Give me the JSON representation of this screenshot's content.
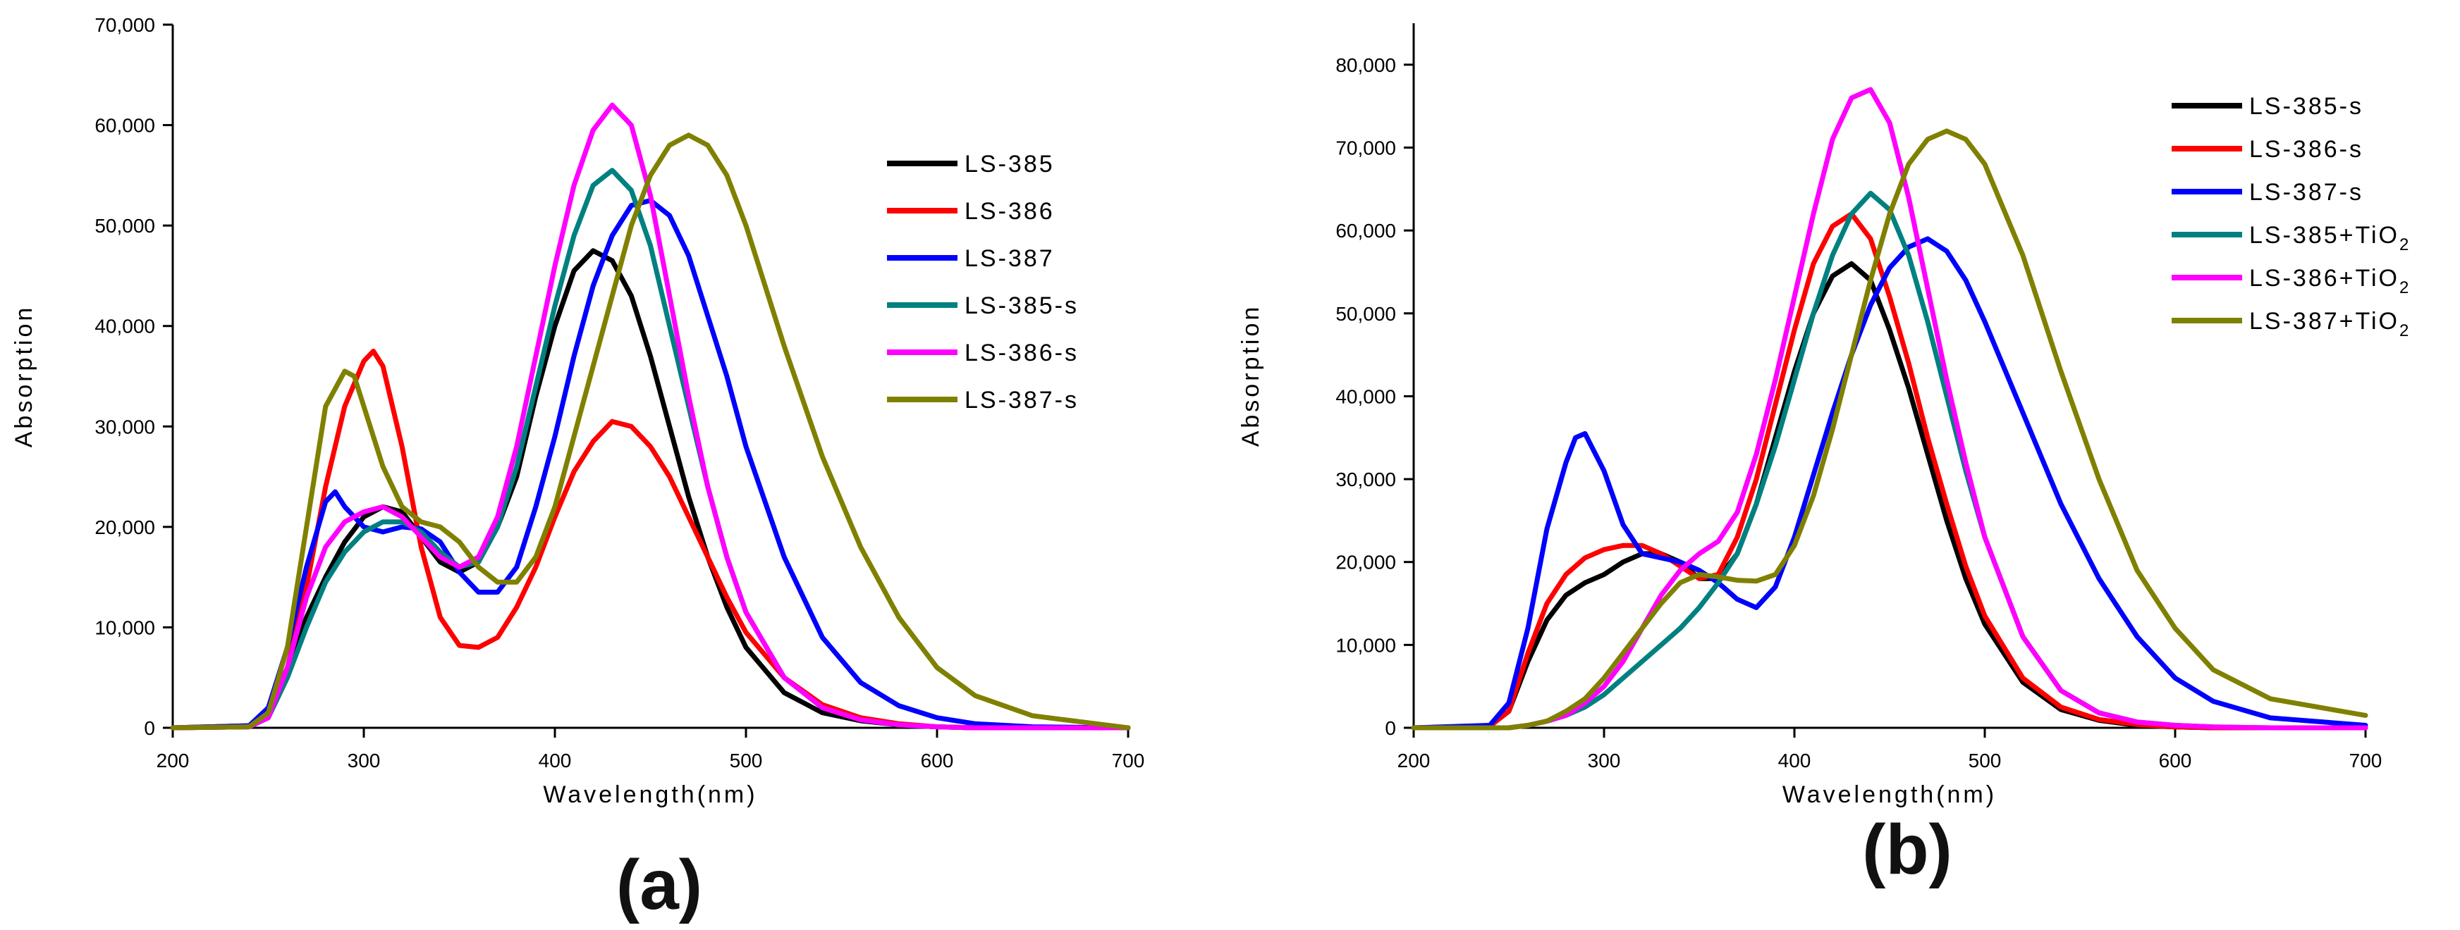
{
  "chart_data": [
    {
      "type": "line",
      "panel_label": "(a)",
      "xlabel": "Wavelength(nm)",
      "ylabel": "Absorption",
      "xlim": [
        200,
        700
      ],
      "ylim": [
        0,
        70000
      ],
      "xticks": [
        200,
        300,
        400,
        500,
        600,
        700
      ],
      "xtick_labels": [
        "200",
        "300",
        "400",
        "500",
        "600",
        "700"
      ],
      "yticks": [
        0,
        10000,
        20000,
        30000,
        40000,
        50000,
        60000,
        70000
      ],
      "ytick_labels": [
        "0",
        "10,000",
        "20,000",
        "30,000",
        "40,000",
        "50,000",
        "60,000",
        "70,000"
      ],
      "legend_position": "top-right",
      "series": [
        {
          "name": "LS-385",
          "color": "#000000",
          "x": [
            200,
            240,
            250,
            260,
            270,
            280,
            290,
            300,
            310,
            320,
            330,
            340,
            350,
            360,
            370,
            380,
            390,
            400,
            410,
            420,
            430,
            440,
            450,
            460,
            470,
            480,
            490,
            500,
            520,
            540,
            560,
            580,
            600,
            620,
            650,
            700
          ],
          "y": [
            0,
            200,
            1500,
            6000,
            11000,
            15000,
            18500,
            21000,
            22000,
            21500,
            19000,
            16500,
            15500,
            16500,
            20000,
            25000,
            33000,
            40000,
            45500,
            47500,
            46500,
            43000,
            37000,
            30000,
            23000,
            17000,
            12000,
            8000,
            3500,
            1500,
            700,
            300,
            100,
            0,
            0,
            0
          ]
        },
        {
          "name": "LS-386",
          "color": "#ff0000",
          "x": [
            200,
            240,
            250,
            260,
            270,
            280,
            290,
            300,
            305,
            310,
            320,
            330,
            340,
            350,
            360,
            370,
            380,
            390,
            400,
            410,
            420,
            430,
            440,
            450,
            460,
            470,
            480,
            490,
            500,
            520,
            540,
            560,
            580,
            600,
            620,
            650,
            700
          ],
          "y": [
            0,
            100,
            1000,
            6000,
            14000,
            24000,
            32000,
            36500,
            37500,
            36000,
            28000,
            18000,
            11000,
            8200,
            8000,
            9000,
            12000,
            16000,
            21000,
            25500,
            28500,
            30500,
            30000,
            28000,
            25000,
            21000,
            17000,
            13000,
            9500,
            5000,
            2300,
            1000,
            400,
            100,
            0,
            0,
            0
          ]
        },
        {
          "name": "LS-387",
          "color": "#0000ff",
          "x": [
            200,
            240,
            250,
            260,
            270,
            280,
            285,
            290,
            300,
            310,
            320,
            330,
            340,
            350,
            360,
            370,
            380,
            390,
            400,
            410,
            420,
            430,
            440,
            450,
            460,
            470,
            480,
            490,
            500,
            520,
            540,
            560,
            580,
            600,
            620,
            650,
            700
          ],
          "y": [
            0,
            200,
            2000,
            8000,
            16000,
            22500,
            23500,
            22000,
            20000,
            19500,
            20000,
            19800,
            18500,
            15500,
            13500,
            13500,
            16000,
            22000,
            29000,
            37000,
            44000,
            49000,
            52000,
            52500,
            51000,
            47000,
            41000,
            35000,
            28000,
            17000,
            9000,
            4500,
            2200,
            1000,
            400,
            100,
            0
          ]
        },
        {
          "name": "LS-385-s",
          "color": "#008080",
          "x": [
            200,
            240,
            250,
            260,
            270,
            280,
            290,
            300,
            310,
            320,
            330,
            340,
            350,
            360,
            370,
            380,
            390,
            400,
            410,
            420,
            430,
            440,
            450,
            460,
            470,
            480,
            490,
            500,
            520,
            540,
            560,
            580,
            600,
            620,
            650,
            700
          ],
          "y": [
            0,
            100,
            1000,
            5000,
            10000,
            14500,
            17500,
            19500,
            20500,
            20500,
            19500,
            17500,
            16000,
            16500,
            20000,
            26000,
            34000,
            42000,
            49000,
            54000,
            55500,
            53500,
            48000,
            40000,
            32000,
            24000,
            17000,
            11500,
            5000,
            2000,
            800,
            300,
            100,
            0,
            0,
            0
          ]
        },
        {
          "name": "LS-386-s",
          "color": "#ff00ff",
          "x": [
            200,
            240,
            250,
            260,
            270,
            280,
            290,
            300,
            310,
            320,
            330,
            340,
            350,
            360,
            370,
            380,
            390,
            400,
            410,
            420,
            430,
            440,
            450,
            460,
            470,
            480,
            490,
            500,
            520,
            540,
            560,
            580,
            600,
            620,
            650,
            700
          ],
          "y": [
            0,
            100,
            1000,
            6000,
            13000,
            18000,
            20500,
            21500,
            22000,
            21000,
            19000,
            17000,
            16000,
            17000,
            21000,
            28000,
            37000,
            46000,
            54000,
            59500,
            62000,
            60000,
            53000,
            43000,
            33000,
            24000,
            17000,
            11500,
            5000,
            2000,
            800,
            300,
            100,
            0,
            0,
            0
          ]
        },
        {
          "name": "LS-387-s",
          "color": "#808000",
          "x": [
            200,
            240,
            250,
            260,
            270,
            280,
            290,
            295,
            300,
            310,
            320,
            330,
            340,
            350,
            360,
            370,
            380,
            390,
            400,
            410,
            420,
            430,
            440,
            450,
            460,
            470,
            480,
            490,
            500,
            520,
            540,
            560,
            580,
            600,
            620,
            650,
            700
          ],
          "y": [
            0,
            100,
            1500,
            8000,
            20000,
            32000,
            35500,
            35000,
            32000,
            26000,
            22000,
            20500,
            20000,
            18500,
            16000,
            14500,
            14500,
            17000,
            22000,
            29000,
            36000,
            43000,
            50000,
            55000,
            58000,
            59000,
            58000,
            55000,
            50000,
            38000,
            27000,
            18000,
            11000,
            6000,
            3200,
            1200,
            0
          ]
        }
      ]
    },
    {
      "type": "line",
      "panel_label": "(b)",
      "xlabel": "Wavelength(nm)",
      "ylabel": "Absorption",
      "xlim": [
        200,
        700
      ],
      "ylim": [
        0,
        85000
      ],
      "xticks": [
        200,
        300,
        400,
        500,
        600,
        700
      ],
      "xtick_labels": [
        "200",
        "300",
        "400",
        "500",
        "600",
        "700"
      ],
      "yticks": [
        0,
        10000,
        20000,
        30000,
        40000,
        50000,
        60000,
        70000,
        80000
      ],
      "ytick_labels": [
        "0",
        "10,000",
        "20,000",
        "30,000",
        "40,000",
        "50,000",
        "60,000",
        "70,000",
        "80,000"
      ],
      "legend_position": "top-right",
      "series": [
        {
          "name": "LS-385-s",
          "legend": {
            "base": "LS-385-s",
            "sub": ""
          },
          "color": "#000000",
          "x": [
            200,
            240,
            250,
            260,
            270,
            280,
            290,
            300,
            310,
            320,
            330,
            340,
            350,
            360,
            370,
            380,
            390,
            400,
            410,
            420,
            430,
            440,
            450,
            460,
            470,
            480,
            490,
            500,
            520,
            540,
            560,
            580,
            600,
            620,
            650,
            700
          ],
          "y": [
            0,
            200,
            2000,
            8000,
            13000,
            16000,
            17500,
            18500,
            20000,
            21000,
            21000,
            20000,
            18000,
            18000,
            21000,
            27000,
            35000,
            43000,
            50000,
            54500,
            56000,
            54000,
            48000,
            41000,
            33000,
            25000,
            18000,
            12500,
            5500,
            2200,
            900,
            300,
            100,
            0,
            0,
            0
          ]
        },
        {
          "name": "LS-386-s",
          "legend": {
            "base": "LS-386-s",
            "sub": ""
          },
          "color": "#ff0000",
          "x": [
            200,
            240,
            250,
            260,
            270,
            280,
            290,
            300,
            310,
            320,
            330,
            340,
            350,
            360,
            370,
            380,
            390,
            400,
            410,
            420,
            430,
            440,
            450,
            460,
            470,
            480,
            490,
            500,
            520,
            540,
            560,
            580,
            600,
            620,
            650,
            700
          ],
          "y": [
            0,
            200,
            2000,
            9000,
            15000,
            18500,
            20500,
            21500,
            22000,
            22000,
            21000,
            19500,
            18000,
            18500,
            23000,
            30000,
            39000,
            48000,
            56000,
            60500,
            62000,
            59000,
            52000,
            44000,
            35000,
            27000,
            19500,
            13500,
            6000,
            2500,
            1000,
            400,
            100,
            0,
            0,
            0
          ]
        },
        {
          "name": "LS-387-s",
          "legend": {
            "base": "LS-387-s",
            "sub": ""
          },
          "color": "#0000ff",
          "x": [
            200,
            240,
            250,
            260,
            270,
            280,
            285,
            290,
            300,
            310,
            320,
            330,
            340,
            350,
            360,
            370,
            380,
            390,
            400,
            410,
            420,
            430,
            440,
            450,
            460,
            470,
            480,
            490,
            500,
            520,
            540,
            560,
            580,
            600,
            620,
            650,
            700
          ],
          "y": [
            0,
            300,
            3000,
            12000,
            24000,
            32000,
            35000,
            35500,
            31000,
            24500,
            21000,
            20500,
            20000,
            19000,
            17500,
            15500,
            14500,
            17000,
            23000,
            30500,
            38000,
            45000,
            51000,
            55500,
            58000,
            59000,
            57500,
            54000,
            49000,
            38000,
            27000,
            18000,
            11000,
            6000,
            3200,
            1200,
            300
          ]
        },
        {
          "name": "LS-385+TiO2",
          "legend": {
            "base": "LS-385+TiO",
            "sub": "2"
          },
          "color": "#008080",
          "x": [
            200,
            250,
            260,
            270,
            280,
            290,
            300,
            310,
            320,
            330,
            340,
            350,
            360,
            370,
            380,
            390,
            400,
            410,
            420,
            430,
            440,
            450,
            460,
            470,
            480,
            490,
            500,
            520,
            540,
            560,
            580,
            600,
            620,
            650,
            700
          ],
          "y": [
            0,
            0,
            300,
            800,
            1500,
            2500,
            4000,
            6000,
            8000,
            10000,
            12000,
            14500,
            17500,
            21000,
            27000,
            34000,
            42000,
            50000,
            57000,
            62000,
            64500,
            62500,
            57000,
            49000,
            40000,
            31000,
            23000,
            11000,
            4500,
            1800,
            700,
            300,
            100,
            0,
            0
          ]
        },
        {
          "name": "LS-386+TiO2",
          "legend": {
            "base": "LS-386+TiO",
            "sub": "2"
          },
          "color": "#ff00ff",
          "x": [
            200,
            250,
            260,
            270,
            280,
            290,
            300,
            310,
            320,
            330,
            340,
            350,
            360,
            370,
            380,
            390,
            400,
            410,
            420,
            430,
            440,
            450,
            460,
            470,
            480,
            490,
            500,
            520,
            540,
            560,
            580,
            600,
            620,
            650,
            700
          ],
          "y": [
            0,
            0,
            300,
            800,
            1500,
            3000,
            5000,
            8000,
            12000,
            16000,
            19000,
            21000,
            22500,
            26000,
            33000,
            42000,
            52000,
            62000,
            71000,
            76000,
            77000,
            73000,
            64000,
            53000,
            42000,
            32000,
            23000,
            11000,
            4500,
            1800,
            700,
            300,
            100,
            0,
            0
          ]
        },
        {
          "name": "LS-387+TiO2",
          "legend": {
            "base": "LS-387+TiO",
            "sub": "2"
          },
          "color": "#808000",
          "x": [
            200,
            250,
            260,
            270,
            280,
            290,
            300,
            310,
            320,
            330,
            340,
            350,
            360,
            370,
            380,
            390,
            400,
            410,
            420,
            430,
            440,
            450,
            460,
            470,
            480,
            490,
            500,
            520,
            540,
            560,
            580,
            600,
            620,
            650,
            700
          ],
          "y": [
            0,
            0,
            300,
            800,
            2000,
            3500,
            6000,
            9000,
            12000,
            15000,
            17500,
            18500,
            18200,
            17800,
            17700,
            18500,
            22000,
            28000,
            36000,
            45000,
            54000,
            62000,
            68000,
            71000,
            72000,
            71000,
            68000,
            57000,
            43000,
            30000,
            19000,
            12000,
            7000,
            3500,
            1500
          ]
        }
      ]
    }
  ]
}
